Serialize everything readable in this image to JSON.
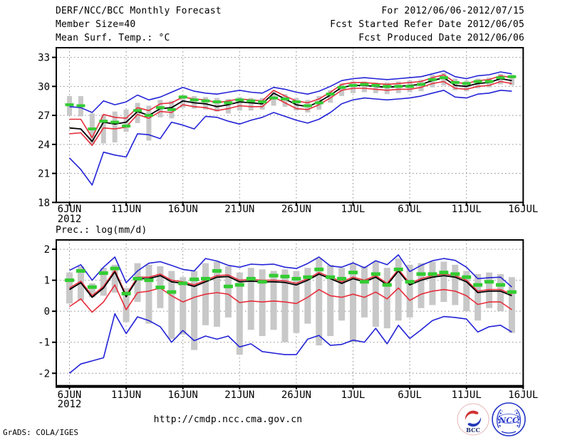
{
  "header": {
    "title": "DERF/NCC/BCC Monthly Forecast",
    "member_size": "Member Size=40",
    "for_range": "For 2012/06/06-2012/07/15",
    "refer_date": "Fcst Started Refer Date 2012/06/05",
    "produced_date": "Fcst Produced Date 2012/06/06"
  },
  "footer": {
    "url": "http://cmdp.ncc.cma.gov.cn",
    "credit": "GrADS: COLA/IGES",
    "bcc_label": "BCC",
    "ncc_label": "NCC"
  },
  "colors": {
    "blue": "#2323d7",
    "red": "#e62e3c",
    "green": "#33cc33",
    "bar_gray": "#c8c8c8",
    "grid_gray": "#8a8a8a",
    "frame": "#000000"
  },
  "chart_data": [
    {
      "id": "temp",
      "type": "line",
      "title": "Mean Surf. Temp.: °C",
      "x_start": "2012-06-06",
      "x_end": "2012-07-15",
      "n_points": 40,
      "year_label": "2012",
      "xticklabels": [
        "6JUN",
        "11JUN",
        "16JUN",
        "21JUN",
        "26JUN",
        "1JUL",
        "6JUL",
        "11JUL",
        "16JUL"
      ],
      "ylim": [
        18,
        34
      ],
      "yticks": [
        18,
        21,
        24,
        27,
        30,
        33
      ],
      "grid": true,
      "series": [
        {
          "name": "member_spread_bars",
          "type": "bar",
          "color": "#c8c8c8",
          "ranges": [
            [
              27.0,
              29.0
            ],
            [
              26.9,
              29.0
            ],
            [
              24.0,
              27.2
            ],
            [
              24.1,
              27.1
            ],
            [
              24.2,
              27.4
            ],
            [
              25.3,
              27.6
            ],
            [
              26.2,
              28.3
            ],
            [
              24.4,
              28.0
            ],
            [
              26.8,
              28.6
            ],
            [
              26.7,
              28.5
            ],
            [
              27.8,
              29.1
            ],
            [
              27.7,
              29.0
            ],
            [
              27.6,
              28.9
            ],
            [
              27.4,
              28.8
            ],
            [
              27.2,
              28.7
            ],
            [
              27.5,
              28.9
            ],
            [
              27.5,
              28.8
            ],
            [
              27.6,
              28.8
            ],
            [
              28.0,
              29.5
            ],
            [
              27.9,
              29.2
            ],
            [
              27.5,
              28.8
            ],
            [
              27.3,
              28.6
            ],
            [
              27.6,
              29.0
            ],
            [
              28.3,
              29.6
            ],
            [
              29.0,
              30.3
            ],
            [
              29.3,
              30.5
            ],
            [
              29.4,
              30.5
            ],
            [
              29.3,
              30.4
            ],
            [
              29.2,
              30.4
            ],
            [
              29.3,
              30.5
            ],
            [
              29.4,
              30.6
            ],
            [
              29.5,
              30.7
            ],
            [
              29.9,
              31.2
            ],
            [
              30.1,
              31.4
            ],
            [
              29.6,
              30.8
            ],
            [
              29.5,
              30.6
            ],
            [
              29.8,
              30.8
            ],
            [
              29.9,
              30.9
            ],
            [
              30.2,
              31.3
            ],
            [
              30.1,
              31.2
            ]
          ]
        },
        {
          "name": "max_member",
          "type": "line",
          "color": "#2323d7",
          "values": [
            27.9,
            27.8,
            27.3,
            28.5,
            28.1,
            28.4,
            29.1,
            28.6,
            28.9,
            29.4,
            29.9,
            29.5,
            29.3,
            29.2,
            29.4,
            29.6,
            29.4,
            29.3,
            29.9,
            29.7,
            29.4,
            29.2,
            29.5,
            30.0,
            30.6,
            30.8,
            30.9,
            30.8,
            30.7,
            30.8,
            30.9,
            31.0,
            31.3,
            31.6,
            31.0,
            30.8,
            31.1,
            31.2,
            31.5,
            31.3
          ]
        },
        {
          "name": "mean_plus_spread",
          "type": "line",
          "color": "#e62e3c",
          "values": [
            26.6,
            26.6,
            24.7,
            27.1,
            26.8,
            26.7,
            27.8,
            27.5,
            28.2,
            28.3,
            28.9,
            28.7,
            28.6,
            28.3,
            28.5,
            28.7,
            28.6,
            28.5,
            29.6,
            29.0,
            28.5,
            28.3,
            28.7,
            29.4,
            30.2,
            30.4,
            30.4,
            30.3,
            30.2,
            30.3,
            30.4,
            30.5,
            30.9,
            31.2,
            30.4,
            30.3,
            30.6,
            30.7,
            31.1,
            30.9
          ]
        },
        {
          "name": "mean_minus_spread",
          "type": "line",
          "color": "#e62e3c",
          "values": [
            25.1,
            25.2,
            23.9,
            25.7,
            25.6,
            25.8,
            27.1,
            26.7,
            27.4,
            27.3,
            28.1,
            27.9,
            27.8,
            27.5,
            27.7,
            28.0,
            27.9,
            27.9,
            28.9,
            28.3,
            27.7,
            27.6,
            28.1,
            28.8,
            29.6,
            29.8,
            29.8,
            29.7,
            29.6,
            29.7,
            29.7,
            29.9,
            30.3,
            30.5,
            29.8,
            29.7,
            30.0,
            30.1,
            30.5,
            30.3
          ]
        },
        {
          "name": "min_member",
          "type": "line",
          "color": "#2323d7",
          "values": [
            22.6,
            21.4,
            19.8,
            23.2,
            22.9,
            22.7,
            25.1,
            25.0,
            24.6,
            26.3,
            26.0,
            25.6,
            26.9,
            26.8,
            26.4,
            26.1,
            26.5,
            26.8,
            27.3,
            26.9,
            26.5,
            26.2,
            26.6,
            27.3,
            28.2,
            28.6,
            28.8,
            28.7,
            28.6,
            28.7,
            28.8,
            29.0,
            29.3,
            29.6,
            28.9,
            28.8,
            29.2,
            29.3,
            29.6,
            29.5
          ]
        },
        {
          "name": "ensemble_mean",
          "type": "line",
          "color": "#000000",
          "values": [
            25.7,
            25.6,
            24.3,
            26.3,
            26.1,
            26.3,
            27.4,
            27.0,
            27.7,
            27.8,
            28.5,
            28.3,
            28.2,
            27.9,
            28.1,
            28.4,
            28.3,
            28.2,
            29.3,
            28.7,
            28.1,
            27.9,
            28.4,
            29.1,
            29.9,
            30.1,
            30.1,
            30.0,
            29.9,
            30.0,
            30.1,
            30.2,
            30.6,
            30.9,
            30.1,
            30.0,
            30.3,
            30.4,
            30.8,
            30.6
          ]
        },
        {
          "name": "observation_dash",
          "type": "dash",
          "color": "#33cc33",
          "values": [
            28.1,
            28.0,
            25.6,
            26.4,
            26.3,
            25.9,
            27.5,
            27.0,
            27.8,
            27.6,
            28.9,
            28.6,
            28.5,
            28.4,
            28.3,
            28.6,
            28.5,
            28.4,
            28.8,
            28.7,
            28.4,
            28.0,
            28.3,
            29.2,
            29.9,
            30.1,
            30.2,
            30.1,
            30.0,
            30.0,
            30.0,
            30.2,
            30.7,
            30.9,
            30.4,
            30.3,
            30.5,
            30.5,
            30.9,
            31.0
          ]
        }
      ]
    },
    {
      "id": "prec",
      "type": "line",
      "title": "Prec.: log(mm/d)",
      "x_start": "2012-06-06",
      "x_end": "2012-07-15",
      "n_points": 40,
      "year_label": "2012",
      "xticklabels": [
        "6JUN",
        "11JUN",
        "16JUN",
        "21JUN",
        "26JUN",
        "1JUL",
        "6JUL",
        "11JUL",
        "16JUL"
      ],
      "ylim": [
        -2.4,
        2.3
      ],
      "yticks": [
        -2,
        -1,
        0,
        1,
        2
      ],
      "grid": true,
      "series": [
        {
          "name": "member_spread_bars",
          "type": "bar",
          "color": "#c8c8c8",
          "ranges": [
            [
              0.25,
              1.25
            ],
            [
              0.35,
              1.45
            ],
            [
              0.45,
              0.9
            ],
            [
              0.5,
              1.4
            ],
            [
              0.6,
              1.5
            ],
            [
              -0.35,
              0.75
            ],
            [
              0.3,
              1.55
            ],
            [
              -0.4,
              1.5
            ],
            [
              0.1,
              1.45
            ],
            [
              -0.9,
              1.3
            ],
            [
              -0.75,
              1.1
            ],
            [
              -1.25,
              1.3
            ],
            [
              -0.45,
              1.55
            ],
            [
              -0.5,
              1.6
            ],
            [
              -0.2,
              1.45
            ],
            [
              -1.4,
              1.25
            ],
            [
              -0.6,
              1.4
            ],
            [
              -0.8,
              1.35
            ],
            [
              -0.6,
              1.3
            ],
            [
              -1.0,
              1.35
            ],
            [
              -0.7,
              1.3
            ],
            [
              -0.4,
              1.4
            ],
            [
              -1.1,
              1.7
            ],
            [
              -0.8,
              1.5
            ],
            [
              -0.3,
              1.4
            ],
            [
              -1.0,
              1.55
            ],
            [
              -0.2,
              1.45
            ],
            [
              -0.5,
              1.6
            ],
            [
              -0.55,
              1.4
            ],
            [
              -0.3,
              1.7
            ],
            [
              -0.2,
              1.5
            ],
            [
              0.1,
              1.55
            ],
            [
              0.2,
              1.6
            ],
            [
              0.3,
              1.6
            ],
            [
              0.2,
              1.5
            ],
            [
              0.0,
              1.3
            ],
            [
              -0.3,
              1.2
            ],
            [
              0.1,
              1.25
            ],
            [
              0.0,
              1.2
            ],
            [
              -0.7,
              1.1
            ]
          ]
        },
        {
          "name": "max_member",
          "type": "line",
          "color": "#2323d7",
          "values": [
            1.32,
            1.5,
            1.0,
            1.42,
            1.75,
            0.92,
            1.3,
            1.55,
            1.6,
            1.48,
            1.35,
            1.3,
            1.7,
            1.62,
            1.48,
            1.42,
            1.52,
            1.5,
            1.52,
            1.42,
            1.38,
            1.54,
            1.75,
            1.46,
            1.42,
            1.56,
            1.4,
            1.63,
            1.5,
            1.82,
            1.28,
            1.48,
            1.63,
            1.7,
            1.64,
            1.42,
            1.05,
            1.08,
            1.1,
            0.78
          ]
        },
        {
          "name": "mean_plus_spread",
          "type": "line",
          "color": "#e62e3c",
          "values": [
            0.75,
            0.97,
            0.5,
            0.8,
            1.32,
            0.52,
            1.1,
            1.1,
            1.2,
            1.0,
            0.95,
            0.85,
            1.0,
            1.15,
            1.17,
            1.0,
            1.02,
            1.0,
            1.0,
            0.98,
            0.9,
            1.05,
            1.25,
            1.1,
            0.95,
            1.1,
            1.0,
            1.15,
            0.9,
            1.35,
            0.9,
            1.05,
            1.15,
            1.2,
            1.15,
            1.0,
            0.65,
            0.7,
            0.7,
            0.55
          ]
        },
        {
          "name": "mean_minus_spread",
          "type": "line",
          "color": "#e62e3c",
          "values": [
            0.15,
            0.4,
            -0.03,
            0.3,
            0.85,
            0.05,
            0.6,
            0.65,
            0.75,
            0.5,
            0.3,
            0.45,
            0.55,
            0.6,
            0.55,
            0.28,
            0.33,
            0.3,
            0.33,
            0.3,
            0.25,
            0.45,
            0.7,
            0.5,
            0.45,
            0.55,
            0.45,
            0.62,
            0.4,
            0.75,
            0.35,
            0.55,
            0.65,
            0.7,
            0.65,
            0.5,
            0.22,
            0.3,
            0.3,
            0.05
          ]
        },
        {
          "name": "min_member",
          "type": "line",
          "color": "#2323d7",
          "values": [
            -2.0,
            -1.7,
            -1.6,
            -1.5,
            -0.08,
            -0.72,
            -0.18,
            -0.3,
            -0.5,
            -1.0,
            -0.62,
            -0.95,
            -0.8,
            -0.9,
            -0.8,
            -1.15,
            -1.05,
            -1.3,
            -1.35,
            -1.4,
            -1.4,
            -0.9,
            -0.78,
            -1.1,
            -1.07,
            -0.93,
            -1.0,
            -0.55,
            -1.05,
            -0.45,
            -0.88,
            -0.6,
            -0.3,
            -0.17,
            -0.2,
            -0.25,
            -0.67,
            -0.5,
            -0.45,
            -0.67
          ]
        },
        {
          "name": "ensemble_mean",
          "type": "line",
          "color": "#000000",
          "values": [
            0.7,
            0.92,
            0.45,
            0.75,
            1.27,
            0.47,
            1.05,
            1.05,
            1.15,
            0.95,
            0.9,
            0.8,
            0.95,
            1.1,
            1.12,
            0.95,
            0.97,
            0.95,
            0.95,
            0.93,
            0.85,
            1.0,
            1.2,
            1.05,
            0.9,
            1.05,
            0.95,
            1.1,
            0.85,
            1.3,
            0.85,
            1.0,
            1.1,
            1.15,
            1.1,
            0.95,
            0.6,
            0.65,
            0.65,
            0.5
          ]
        },
        {
          "name": "observation_dash",
          "type": "dash",
          "color": "#33cc33",
          "values": [
            1.0,
            1.3,
            0.78,
            1.23,
            1.38,
            0.57,
            1.05,
            1.0,
            0.77,
            0.62,
            0.9,
            1.03,
            1.05,
            1.3,
            0.8,
            0.85,
            1.05,
            0.95,
            1.15,
            1.12,
            1.05,
            1.1,
            1.35,
            1.1,
            1.05,
            1.25,
            0.95,
            1.2,
            0.85,
            1.35,
            0.95,
            1.2,
            1.2,
            1.25,
            1.2,
            1.1,
            0.85,
            0.95,
            0.85,
            0.62
          ]
        }
      ]
    }
  ]
}
